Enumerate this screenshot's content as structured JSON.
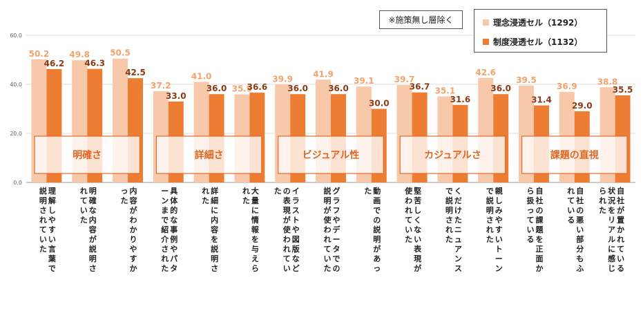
{
  "chart_data": {
    "type": "bar",
    "ylim": [
      0,
      60
    ],
    "yticks": [
      "0.0",
      "20.0",
      "40.0",
      "60.0"
    ],
    "grid": true,
    "note": "※施策無し層除く",
    "legend_position": "top-right",
    "series": [
      {
        "name": "理念浸透セル（1292）",
        "color": "#F8C8AA",
        "values": [
          50.2,
          49.8,
          50.5,
          37.2,
          41.0,
          35.9,
          39.9,
          41.9,
          39.1,
          39.7,
          35.1,
          42.6,
          39.5,
          36.9,
          38.8
        ]
      },
      {
        "name": "制度浸透セル（1132）",
        "color": "#EE7D34",
        "values": [
          46.2,
          46.3,
          42.5,
          33.0,
          36.0,
          36.6,
          36.0,
          36.0,
          30.0,
          36.7,
          31.6,
          36.0,
          31.4,
          29.0,
          35.5
        ]
      }
    ],
    "value_labels": [
      [
        "50.2",
        "49.8",
        "50.5",
        "37.2",
        "41.0",
        "35.9",
        "39.9",
        "41.9",
        "39.1",
        "39.7",
        "35.1",
        "42.6",
        "39.5",
        "36.9",
        "38.8"
      ],
      [
        "46.2",
        "46.3",
        "42.5",
        "33.0",
        "36.0",
        "36.6",
        "36.0",
        "36.0",
        "30.0",
        "36.7",
        "31.6",
        "36.0",
        "31.4",
        "29.0",
        "35.5"
      ]
    ],
    "categories": [
      "理解しやすい言葉で説明されていた",
      "明確な内容が説明されていた",
      "内容がわかりやすかった",
      "具体的な事例やパターンまで紹介された",
      "詳細に内容を説明された",
      "大量に情報を与えられた",
      "イラストや図版などの表現が使われていた",
      "グラフやデータでの説明が使われていた",
      "動画での説明があった",
      "堅苦しくない表現が使われていた",
      "くだけたニュアンスで説明された",
      "親しみやすいトーンで説明された",
      "自社の課題を正面から扱っている",
      "自社の悪い部分もふれている",
      "自社が置かれている状況をリアルに感じられた"
    ],
    "groups": [
      {
        "label": "明確さ",
        "span": [
          0,
          2
        ]
      },
      {
        "label": "詳細さ",
        "span": [
          3,
          5
        ]
      },
      {
        "label": "ビジュアル性",
        "span": [
          6,
          8
        ]
      },
      {
        "label": "カジュアルさ",
        "span": [
          9,
          11
        ]
      },
      {
        "label": "課題の直視",
        "span": [
          12,
          14
        ]
      }
    ]
  }
}
